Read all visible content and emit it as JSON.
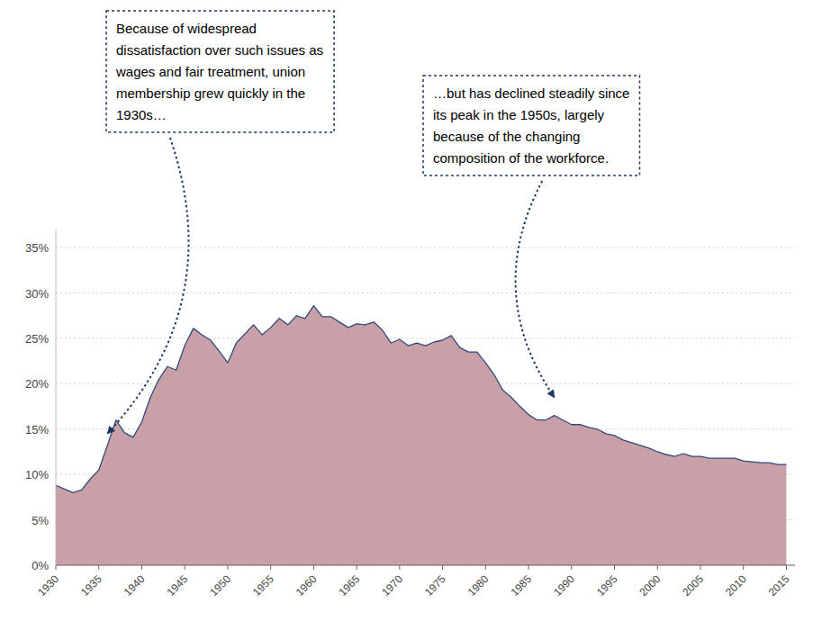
{
  "chart_data": {
    "type": "area",
    "x": [
      1930,
      1931,
      1932,
      1933,
      1934,
      1935,
      1936,
      1937,
      1938,
      1939,
      1940,
      1941,
      1942,
      1943,
      1944,
      1945,
      1946,
      1947,
      1948,
      1949,
      1950,
      1951,
      1952,
      1953,
      1954,
      1955,
      1956,
      1957,
      1958,
      1959,
      1960,
      1961,
      1962,
      1963,
      1964,
      1965,
      1966,
      1967,
      1968,
      1969,
      1970,
      1971,
      1972,
      1973,
      1974,
      1975,
      1976,
      1977,
      1978,
      1979,
      1980,
      1981,
      1982,
      1983,
      1984,
      1985,
      1986,
      1987,
      1988,
      1989,
      1990,
      1991,
      1992,
      1993,
      1994,
      1995,
      1996,
      1997,
      1998,
      1999,
      2000,
      2001,
      2002,
      2003,
      2004,
      2005,
      2006,
      2007,
      2008,
      2009,
      2010,
      2011,
      2012,
      2013,
      2014,
      2015
    ],
    "values": [
      8.8,
      8.4,
      8.0,
      8.3,
      9.5,
      10.5,
      13.2,
      16.0,
      14.6,
      14.1,
      15.8,
      18.5,
      20.5,
      21.9,
      21.5,
      24.2,
      26.1,
      25.4,
      24.8,
      23.6,
      22.3,
      24.5,
      25.5,
      26.5,
      25.4,
      26.2,
      27.2,
      26.5,
      27.5,
      27.2,
      28.6,
      27.4,
      27.4,
      26.8,
      26.2,
      26.6,
      26.5,
      26.8,
      25.9,
      24.5,
      24.9,
      24.2,
      24.5,
      24.2,
      24.6,
      24.8,
      25.3,
      24.0,
      23.5,
      23.5,
      22.3,
      21.0,
      19.3,
      18.5,
      17.5,
      16.6,
      16.0,
      16.0,
      16.5,
      16.0,
      15.5,
      15.5,
      15.2,
      15.0,
      14.5,
      14.3,
      13.8,
      13.5,
      13.2,
      12.9,
      12.5,
      12.2,
      12.0,
      12.3,
      12.0,
      12.0,
      11.8,
      11.8,
      11.8,
      11.8,
      11.5,
      11.4,
      11.3,
      11.3,
      11.1,
      11.1
    ],
    "color": "#c9a0a8",
    "xlim": [
      1930,
      2016
    ],
    "ylim": [
      0,
      37
    ],
    "xticks": [
      1930,
      1935,
      1940,
      1945,
      1950,
      1955,
      1960,
      1965,
      1970,
      1975,
      1980,
      1985,
      1990,
      1995,
      2000,
      2005,
      2010,
      2015
    ],
    "yticks": [
      {
        "value": 0,
        "label": "0%"
      },
      {
        "value": 5,
        "label": "5%"
      },
      {
        "value": 10,
        "label": "10%"
      },
      {
        "value": 15,
        "label": "15%"
      },
      {
        "value": 20,
        "label": "20%"
      },
      {
        "value": 25,
        "label": "25%"
      },
      {
        "value": 30,
        "label": "30%"
      },
      {
        "value": 35,
        "label": "35%"
      }
    ],
    "grid": true,
    "annotations": [
      {
        "text": "Because of widespread\ndissatisfaction over such issues as\nwages and fair treatment, union\nmembership grew quickly in the\n1930s…",
        "x": 1936,
        "y": 14.5
      },
      {
        "text": "…but has declined steadily since\nits peak in the 1950s, largely\nbecause of the changing\ncomposition of the workforce.",
        "x": 1988,
        "y": 18.5
      }
    ]
  }
}
